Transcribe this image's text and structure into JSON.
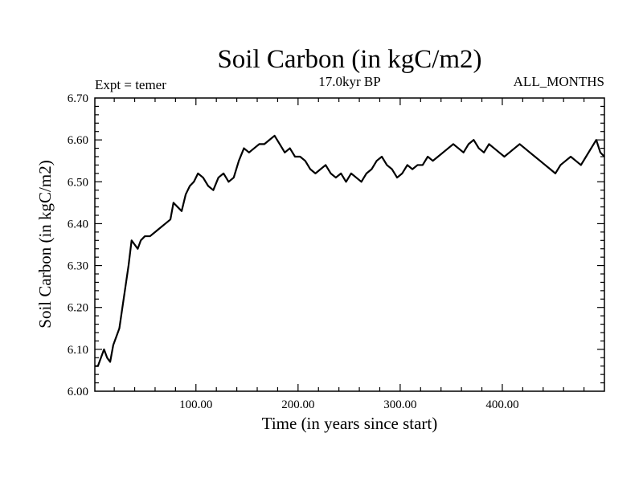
{
  "chart_data": {
    "type": "line",
    "title": "Soil Carbon (in kgC/m2)",
    "subtitle": "17.0kyr BP",
    "left_label": "Expt = temer",
    "right_label": "ALL_MONTHS",
    "xlabel": "Time (in years since start)",
    "ylabel": "Soil Carbon (in kgC/m2)",
    "xlim": [
      1,
      500
    ],
    "ylim": [
      6.0,
      6.7
    ],
    "xticks": [
      100,
      200,
      300,
      400
    ],
    "xtick_labels": [
      "100.00",
      "200.00",
      "300.00",
      "400.00"
    ],
    "yticks": [
      6.0,
      6.1,
      6.2,
      6.3,
      6.4,
      6.5,
      6.6,
      6.7
    ],
    "ytick_labels": [
      "6.00",
      "6.10",
      "6.20",
      "6.30",
      "6.40",
      "6.50",
      "6.60",
      "6.70"
    ],
    "series": [
      {
        "name": "Soil Carbon",
        "x": [
          1,
          4,
          7,
          10,
          13,
          16,
          19,
          22,
          25,
          28,
          31,
          34,
          37,
          40,
          43,
          46,
          50,
          55,
          60,
          65,
          70,
          75,
          78,
          82,
          86,
          90,
          94,
          98,
          102,
          107,
          112,
          117,
          122,
          127,
          132,
          137,
          142,
          147,
          152,
          157,
          162,
          167,
          172,
          177,
          182,
          187,
          192,
          197,
          202,
          207,
          212,
          217,
          222,
          227,
          232,
          237,
          242,
          247,
          252,
          257,
          262,
          267,
          272,
          277,
          282,
          287,
          292,
          297,
          302,
          307,
          312,
          317,
          322,
          327,
          332,
          337,
          342,
          347,
          352,
          357,
          362,
          367,
          372,
          377,
          382,
          387,
          392,
          397,
          402,
          407,
          412,
          417,
          422,
          427,
          432,
          437,
          442,
          447,
          452,
          457,
          462,
          467,
          472,
          477,
          482,
          487,
          492,
          496,
          500
        ],
        "values": [
          6.06,
          6.06,
          6.08,
          6.1,
          6.08,
          6.07,
          6.11,
          6.13,
          6.15,
          6.2,
          6.25,
          6.3,
          6.36,
          6.35,
          6.34,
          6.36,
          6.37,
          6.37,
          6.38,
          6.39,
          6.4,
          6.41,
          6.45,
          6.44,
          6.43,
          6.47,
          6.49,
          6.5,
          6.52,
          6.51,
          6.49,
          6.48,
          6.51,
          6.52,
          6.5,
          6.51,
          6.55,
          6.58,
          6.57,
          6.58,
          6.59,
          6.59,
          6.6,
          6.61,
          6.59,
          6.57,
          6.58,
          6.56,
          6.56,
          6.55,
          6.53,
          6.52,
          6.53,
          6.54,
          6.52,
          6.51,
          6.52,
          6.5,
          6.52,
          6.51,
          6.5,
          6.52,
          6.53,
          6.55,
          6.56,
          6.54,
          6.53,
          6.51,
          6.52,
          6.54,
          6.53,
          6.54,
          6.54,
          6.56,
          6.55,
          6.56,
          6.57,
          6.58,
          6.59,
          6.58,
          6.57,
          6.59,
          6.6,
          6.58,
          6.57,
          6.59,
          6.58,
          6.57,
          6.56,
          6.57,
          6.58,
          6.59,
          6.58,
          6.57,
          6.56,
          6.55,
          6.54,
          6.53,
          6.52,
          6.54,
          6.55,
          6.56,
          6.55,
          6.54,
          6.56,
          6.58,
          6.6,
          6.57,
          6.56
        ]
      }
    ]
  },
  "colors": {
    "line": "#000000",
    "axis": "#000000",
    "background": "#ffffff"
  }
}
